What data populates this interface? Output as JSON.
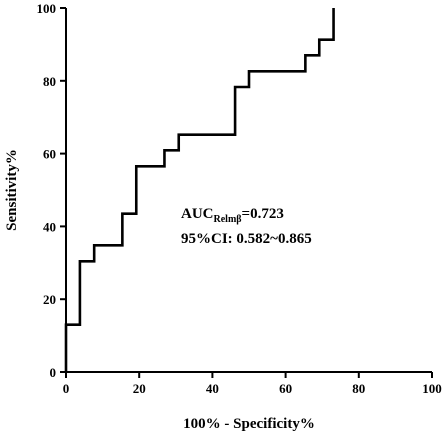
{
  "chart_data": {
    "type": "line",
    "title": "",
    "xlabel": "100% - Specificity%",
    "ylabel": "Sensitivity%",
    "xlim": [
      0,
      100
    ],
    "ylim": [
      0,
      100
    ],
    "x_ticks": [
      0,
      20,
      40,
      60,
      80,
      100
    ],
    "y_ticks": [
      0,
      20,
      40,
      60,
      80,
      100
    ],
    "x_tick_labels": [
      "0",
      "20",
      "40",
      "60",
      "80",
      "100"
    ],
    "y_tick_labels": [
      "0",
      "20",
      "40",
      "60",
      "80",
      "100"
    ],
    "grid": false,
    "legend": "none",
    "line_color": "#000000",
    "series": [
      {
        "x": [
          0,
          0,
          3.8,
          3.8,
          7.7,
          7.7,
          15.4,
          15.4,
          19.2,
          19.2,
          26.9,
          26.9,
          30.8,
          30.8,
          46.2,
          46.2,
          50.0,
          50.0,
          65.4,
          65.4,
          69.2,
          69.2,
          73.1,
          73.1
        ],
        "y": [
          0,
          13.0,
          13.0,
          30.4,
          30.4,
          34.8,
          34.8,
          43.5,
          43.5,
          56.5,
          56.5,
          60.9,
          60.9,
          65.2,
          65.2,
          78.3,
          78.3,
          82.6,
          82.6,
          87.0,
          87.0,
          91.3,
          91.3,
          100
        ]
      }
    ],
    "annotation": {
      "auc_main": "AUC",
      "auc_sub": "Relmβ",
      "auc_value": "=0.723",
      "ci_text": "95%CI: 0.582~0.865"
    }
  }
}
